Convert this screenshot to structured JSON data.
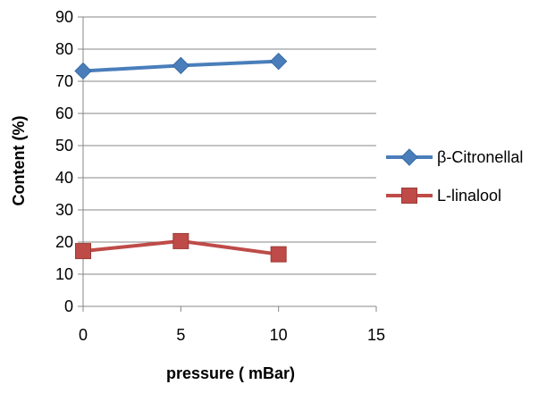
{
  "chart_data": {
    "type": "line",
    "title": "",
    "xlabel": "pressure ( mBar)",
    "ylabel": "Content (%)",
    "xlim": [
      0,
      15
    ],
    "ylim": [
      0,
      90
    ],
    "xticks": [
      0,
      5,
      10,
      15
    ],
    "yticks": [
      0,
      10,
      20,
      30,
      40,
      50,
      60,
      70,
      80,
      90
    ],
    "grid": "horizontal",
    "legend_position": "right",
    "series": [
      {
        "name": "β-Citronellal",
        "x": [
          0,
          5,
          10
        ],
        "y": [
          73.2,
          74.9,
          76.2
        ],
        "color": "#4A7EBB",
        "marker": "diamond"
      },
      {
        "name": "L-linalool",
        "x": [
          0,
          5,
          10
        ],
        "y": [
          17.2,
          20.3,
          16.2
        ],
        "color": "#BE4B48",
        "marker": "square"
      }
    ]
  }
}
